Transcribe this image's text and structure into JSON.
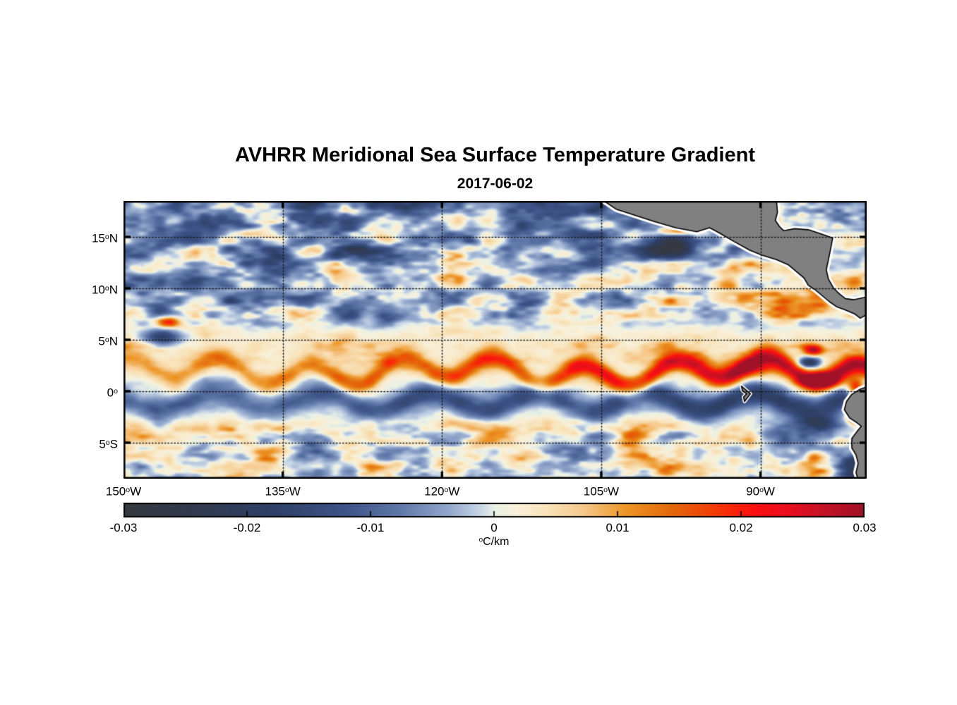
{
  "chart_data": {
    "type": "heatmap",
    "title": "AVHRR Meridional Sea Surface Temperature Gradient",
    "subtitle": "2017-06-02",
    "x_axis": {
      "range_deg_lon": [
        -150,
        -80
      ],
      "ticks": [
        {
          "value": -150,
          "label": "150",
          "hem": "W"
        },
        {
          "value": -135,
          "label": "135",
          "hem": "W"
        },
        {
          "value": -120,
          "label": "120",
          "hem": "W"
        },
        {
          "value": -105,
          "label": "105",
          "hem": "W"
        },
        {
          "value": -90,
          "label": "90",
          "hem": "W"
        }
      ]
    },
    "y_axis": {
      "range_deg_lat": [
        18.5,
        -8.5
      ],
      "ticks": [
        {
          "value": 15,
          "label": "15",
          "hem": "N"
        },
        {
          "value": 10,
          "label": "10",
          "hem": "N"
        },
        {
          "value": 5,
          "label": "5",
          "hem": "N"
        },
        {
          "value": 0,
          "label": "0",
          "hem": ""
        },
        {
          "value": -5,
          "label": "5",
          "hem": "S"
        }
      ]
    },
    "grid": {
      "show": true,
      "style": "dotted",
      "color": "#1a1a1a"
    },
    "colorbar": {
      "min": -0.03,
      "max": 0.03,
      "tick_labels": [
        "-0.03",
        "-0.02",
        "-0.01",
        "0",
        "0.01",
        "0.02",
        "0.03"
      ],
      "tick_values": [
        -0.03,
        -0.02,
        -0.01,
        0,
        0.01,
        0.02,
        0.03
      ],
      "inner_tick_values": [
        -0.02,
        -0.01,
        0,
        0.01,
        0.02
      ],
      "unit": {
        "sup": "o",
        "text": "C/km"
      },
      "stops": [
        [
          0.0,
          "#36393f"
        ],
        [
          0.1,
          "#313a4f"
        ],
        [
          0.2,
          "#2e4066"
        ],
        [
          0.3,
          "#3e5488"
        ],
        [
          0.37,
          "#5e76a8"
        ],
        [
          0.44,
          "#93a8cc"
        ],
        [
          0.48,
          "#c6d4e6"
        ],
        [
          0.5,
          "#e9f0e6"
        ],
        [
          0.53,
          "#f8f0da"
        ],
        [
          0.57,
          "#f8e3ba"
        ],
        [
          0.62,
          "#f6c98c"
        ],
        [
          0.68,
          "#ec9424"
        ],
        [
          0.74,
          "#e4680a"
        ],
        [
          0.8,
          "#f43a06"
        ],
        [
          0.85,
          "#fb100f"
        ],
        [
          0.9,
          "#e60f1e"
        ],
        [
          0.95,
          "#c11226"
        ],
        [
          1.0,
          "#a01127"
        ]
      ]
    },
    "land": {
      "fill": "#808080",
      "outline": "#000000",
      "halo": "#ffffff",
      "polygons": {
        "central_america": [
          [
            -104.9,
            18.6
          ],
          [
            -103.6,
            17.7
          ],
          [
            -101.8,
            17.1
          ],
          [
            -100.0,
            16.5
          ],
          [
            -98.0,
            15.9
          ],
          [
            -96.0,
            15.5
          ],
          [
            -94.8,
            15.9
          ],
          [
            -93.9,
            15.4
          ],
          [
            -92.4,
            14.5
          ],
          [
            -91.0,
            13.7
          ],
          [
            -89.8,
            13.2
          ],
          [
            -88.5,
            12.8
          ],
          [
            -87.4,
            12.3
          ],
          [
            -86.8,
            11.8
          ],
          [
            -85.9,
            11.0
          ],
          [
            -85.5,
            10.3
          ],
          [
            -84.9,
            9.9
          ],
          [
            -84.2,
            9.3
          ],
          [
            -83.5,
            8.7
          ],
          [
            -82.8,
            8.2
          ],
          [
            -82.0,
            7.9
          ],
          [
            -81.1,
            7.5
          ],
          [
            -80.6,
            7.1
          ],
          [
            -80.1,
            7.4
          ],
          [
            -79.3,
            7.2
          ],
          [
            -78.8,
            9.4
          ],
          [
            -80.3,
            9.1
          ],
          [
            -81.2,
            8.9
          ],
          [
            -82.0,
            9.0
          ],
          [
            -82.6,
            9.5
          ],
          [
            -83.1,
            10.0
          ],
          [
            -83.6,
            10.9
          ],
          [
            -83.8,
            11.8
          ],
          [
            -83.6,
            12.8
          ],
          [
            -83.4,
            13.8
          ],
          [
            -83.2,
            14.9
          ],
          [
            -84.3,
            15.3
          ],
          [
            -85.5,
            15.7
          ],
          [
            -86.8,
            15.8
          ],
          [
            -87.8,
            15.6
          ],
          [
            -88.2,
            16.0
          ],
          [
            -88.6,
            16.6
          ],
          [
            -88.4,
            17.4
          ],
          [
            -88.5,
            18.6
          ]
        ],
        "south_america": [
          [
            -79.0,
            0.8
          ],
          [
            -80.6,
            0.2
          ],
          [
            -81.4,
            -0.3
          ],
          [
            -81.9,
            -1.0
          ],
          [
            -82.1,
            -1.8
          ],
          [
            -81.6,
            -2.6
          ],
          [
            -81.0,
            -3.0
          ],
          [
            -80.5,
            -3.4
          ],
          [
            -80.9,
            -3.9
          ],
          [
            -81.4,
            -4.6
          ],
          [
            -81.4,
            -5.5
          ],
          [
            -81.0,
            -6.2
          ],
          [
            -80.8,
            -7.0
          ],
          [
            -81.0,
            -7.9
          ],
          [
            -80.7,
            -9.0
          ],
          [
            -78.5,
            -9.0
          ]
        ],
        "galapagos": [
          [
            -91.8,
            0.5
          ],
          [
            -90.95,
            -0.25
          ],
          [
            -91.5,
            -1.0
          ],
          [
            -91.6,
            -0.55
          ],
          [
            -91.3,
            -0.25
          ],
          [
            -91.7,
            0.05
          ]
        ]
      }
    },
    "field_features": {
      "description": "Meridional SST gradient (degC/km). Strong positive (orange to dark red) wavy front along 1-3N intensifying eastward toward the coast (tropical instability waves); negative (slate blue) wavy band along 0-2S; mottled negative patches north of 8N with orange filaments east of 100W; pale near-zero background elsewhere; strong red cells at the Ecuador/Peru coast and off southern Mexico; gray land mask with white coastal buffer; Galapagos Islands visible near 91W,0.",
      "synthesis": {
        "front": {
          "lat_center": 1.9,
          "wave_amp": 1.0,
          "wave_len": 8.6,
          "phase": 1.2,
          "long_wave_amp": 0.5,
          "long_wave_len": 27,
          "long_phase": 0.5,
          "sigma": 1.05,
          "amp_west": 0.01,
          "amp_east_add": 0.019
        },
        "south_band": {
          "lat_center": -1.0,
          "wave_amp": 0.8,
          "wave_len": 10.2,
          "phase": 2.6,
          "sigma": 1.15,
          "amp_west": 0.009,
          "amp_east_add": 0.01
        },
        "north_zone": {
          "start_lat": 5.5,
          "full_lat": 8.0,
          "noise_amp": 0.05,
          "bias": -0.003,
          "extra_north_bias": -0.0035,
          "east_orange_amp": 0.009
        },
        "cream_band": {
          "lat_center": 4.2,
          "sigma": 2.2,
          "base": 0.004,
          "noise_amp": 0.012
        },
        "south_zone": {
          "start_lat": -2.3,
          "full_lat": -4.2,
          "noise_amp": 0.042,
          "cream_lat": -4.0,
          "cream_amp": 0.003
        },
        "blobs": [
          {
            "lon": -145.8,
            "lat": 6.7,
            "amp": 0.026,
            "rx": 1.2,
            "ry": 0.55
          },
          {
            "lon": -146.4,
            "lat": 5.2,
            "amp": -0.02,
            "rx": 1.8,
            "ry": 0.8
          },
          {
            "lon": -97.5,
            "lat": 15.6,
            "amp": 0.028,
            "rx": 2.0,
            "ry": 0.5
          },
          {
            "lon": -98.6,
            "lat": 13.8,
            "amp": -0.022,
            "rx": 2.8,
            "ry": 0.9
          },
          {
            "lon": -90.5,
            "lat": 2.2,
            "amp": 0.013,
            "rx": 2.6,
            "ry": 0.9
          },
          {
            "lon": -85.0,
            "lat": 4.0,
            "amp": 0.026,
            "rx": 0.9,
            "ry": 0.5
          },
          {
            "lon": -85.4,
            "lat": 2.8,
            "amp": -0.025,
            "rx": 1.0,
            "ry": 0.5
          },
          {
            "lon": -84.3,
            "lat": 1.1,
            "amp": 0.03,
            "rx": 1.7,
            "ry": 0.7
          },
          {
            "lon": -81.0,
            "lat": 0.3,
            "amp": 0.03,
            "rx": 0.9,
            "ry": 0.9
          },
          {
            "lon": -81.1,
            "lat": -2.5,
            "amp": 0.03,
            "rx": 0.7,
            "ry": 0.7
          },
          {
            "lon": -84.5,
            "lat": -3.2,
            "amp": -0.02,
            "rx": 2.2,
            "ry": 0.9
          },
          {
            "lon": -81.2,
            "lat": -7.4,
            "amp": -0.024,
            "rx": 1.6,
            "ry": 1.4
          },
          {
            "lon": -84.8,
            "lat": -6.3,
            "amp": 0.016,
            "rx": 1.0,
            "ry": 0.6
          },
          {
            "lon": -88.2,
            "lat": 8.8,
            "amp": 0.012,
            "rx": 1.6,
            "ry": 0.9
          },
          {
            "lon": -93.0,
            "lat": 10.5,
            "amp": 0.012,
            "rx": 1.4,
            "ry": 0.7
          }
        ]
      }
    }
  }
}
